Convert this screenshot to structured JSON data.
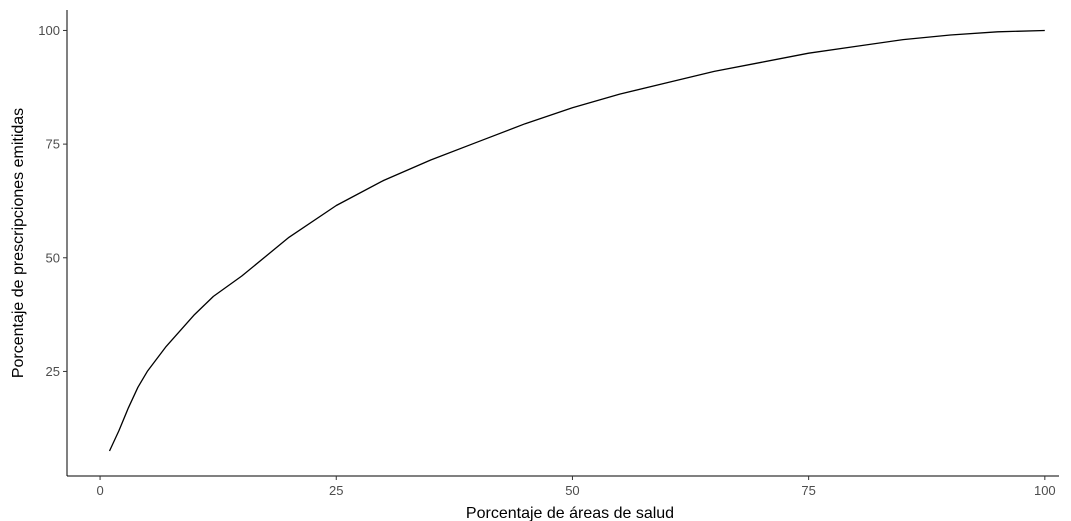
{
  "chart_data": {
    "type": "line",
    "title": "",
    "xlabel": "Porcentaje de áreas de salud",
    "ylabel": "Porcentaje de prescripciones emitidas",
    "xlim": [
      -3.5,
      101.5
    ],
    "ylim": [
      2,
      104.5
    ],
    "x_ticks": [
      0,
      25,
      50,
      75,
      100
    ],
    "x_tick_labels": [
      "0",
      "25",
      "50",
      "75",
      "100"
    ],
    "y_ticks": [
      25,
      50,
      75,
      100
    ],
    "y_tick_labels": [
      "25",
      "50",
      "75",
      "100"
    ],
    "grid": false,
    "legend": "none",
    "series": [
      {
        "line_color": "#000000",
        "x": [
          1,
          2,
          3,
          4,
          5,
          7,
          10,
          12,
          15,
          20,
          25,
          30,
          35,
          40,
          45,
          50,
          55,
          60,
          65,
          70,
          75,
          80,
          85,
          90,
          95,
          100
        ],
        "y": [
          7.5,
          12,
          17,
          21.5,
          25,
          30.5,
          37.5,
          41.5,
          46,
          54.5,
          61.5,
          67,
          71.5,
          75.5,
          79.5,
          83,
          86,
          88.5,
          91,
          93,
          95,
          96.5,
          98,
          99,
          99.7,
          100
        ]
      }
    ]
  }
}
